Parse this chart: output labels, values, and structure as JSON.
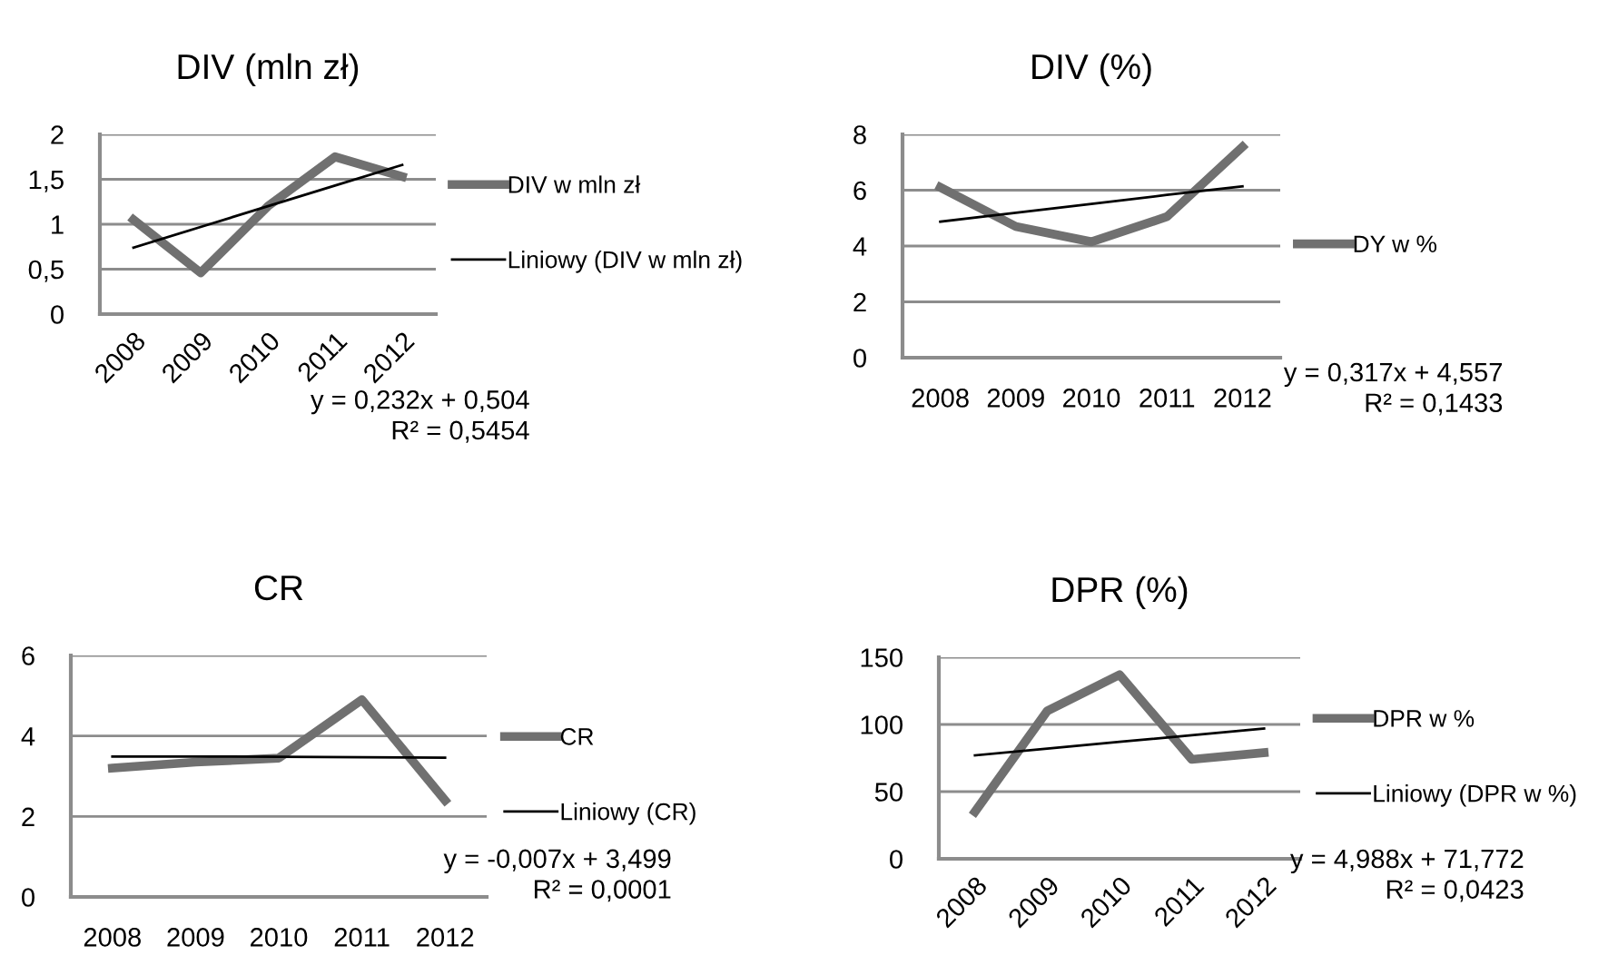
{
  "chart_data": [
    {
      "type": "line",
      "title": "DIV (mln zł)",
      "categories": [
        "2008",
        "2009",
        "2010",
        "2011",
        "2012"
      ],
      "ylim": [
        0,
        2
      ],
      "yticks": [
        {
          "value": 0,
          "label": "0"
        },
        {
          "value": 0.5,
          "label": "0,5"
        },
        {
          "value": 1,
          "label": "1"
        },
        {
          "value": 1.5,
          "label": "1,5"
        },
        {
          "value": 2,
          "label": "2"
        }
      ],
      "grid": "y",
      "legend": "right",
      "series": [
        {
          "name": "DIV w mln zł",
          "color": "#707070",
          "values": [
            1.05,
            0.46,
            1.2,
            1.75,
            1.53
          ]
        },
        {
          "name": "Liniowy (DIV w mln zł)",
          "color": "#000000",
          "values": [
            0.74,
            0.97,
            1.2,
            1.43,
            1.66
          ]
        }
      ],
      "annotations": [
        "y = 0,232x + 0,504",
        "R² = 0,5454"
      ]
    },
    {
      "type": "line",
      "title": "DIV (%)",
      "categories": [
        "2008",
        "2009",
        "2010",
        "2011",
        "2012"
      ],
      "ylim": [
        0,
        8
      ],
      "yticks": [
        0,
        2,
        4,
        6,
        8
      ],
      "grid": "y",
      "legend": "right",
      "series": [
        {
          "name": "DY w %",
          "color": "#707070",
          "values": [
            6.1,
            4.7,
            4.15,
            5.05,
            7.55
          ]
        },
        {
          "color": "#000000",
          "values": [
            4.87,
            5.19,
            5.51,
            5.83,
            6.14
          ]
        }
      ],
      "annotations": [
        "y = 0,317x + 4,557",
        "R² = 0,1433"
      ]
    },
    {
      "type": "line",
      "title": "CR",
      "categories": [
        "2008",
        "2009",
        "2010",
        "2011",
        "2012"
      ],
      "ylim": [
        0,
        6
      ],
      "yticks": [
        0,
        2,
        4,
        6
      ],
      "grid": "y",
      "legend": "right",
      "series": [
        {
          "name": "CR",
          "color": "#707070",
          "values": [
            3.2,
            3.35,
            3.45,
            4.9,
            2.4
          ]
        },
        {
          "name": "Liniowy (CR)",
          "color": "#000000",
          "values": [
            3.49,
            3.49,
            3.48,
            3.47,
            3.46
          ]
        }
      ],
      "annotations": [
        "y = -0,007x + 3,499",
        "R² = 0,0001"
      ]
    },
    {
      "type": "line",
      "title": "DPR (%)",
      "categories": [
        "2008",
        "2009",
        "2010",
        "2011",
        "2012"
      ],
      "ylim": [
        0,
        150
      ],
      "yticks": [
        0,
        50,
        100,
        150
      ],
      "grid": "y",
      "legend": "right",
      "series": [
        {
          "name": "DPR w %",
          "color": "#707070",
          "values": [
            35,
            110,
            137,
            74,
            79
          ]
        },
        {
          "name": "Liniowy (DPR w %)",
          "color": "#000000",
          "values": [
            77,
            82,
            87,
            92,
            97
          ]
        }
      ],
      "annotations": [
        "y = 4,988x + 71,772",
        "R² = 0,0423"
      ]
    }
  ]
}
